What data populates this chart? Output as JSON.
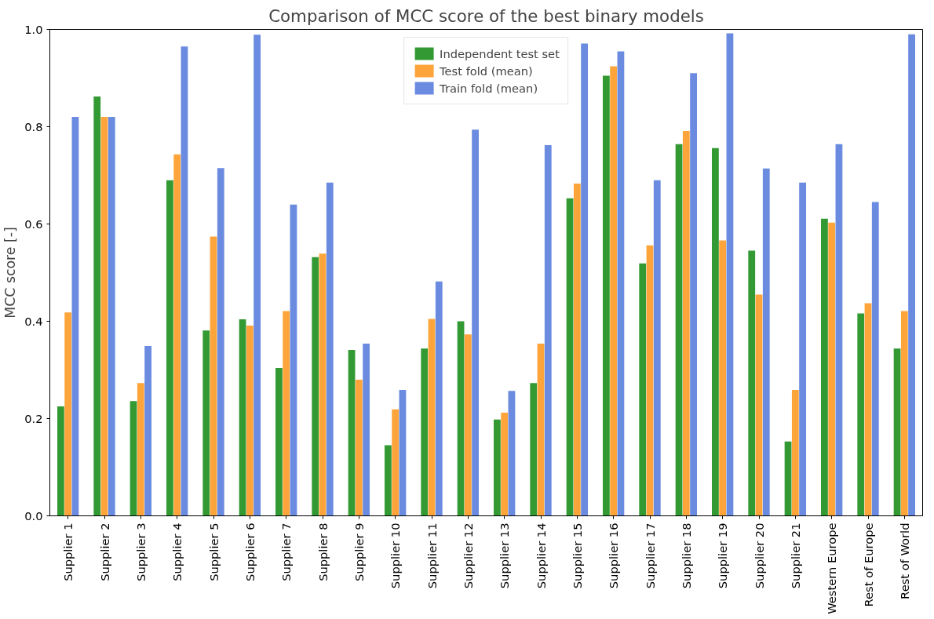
{
  "chart_data": {
    "type": "bar",
    "title": "Comparison of MCC score of the best binary models",
    "ylabel": "MCC score [-]",
    "categories": [
      "Supplier 1",
      "Supplier 2",
      "Supplier 3",
      "Supplier 4",
      "Supplier 5",
      "Supplier 6",
      "Supplier 7",
      "Supplier 8",
      "Supplier 9",
      "Supplier 10",
      "Supplier 11",
      "Supplier 12",
      "Supplier 13",
      "Supplier 14",
      "Supplier 15",
      "Supplier 16",
      "Supplier 17",
      "Supplier 18",
      "Supplier 19",
      "Supplier 20",
      "Supplier 21",
      "Western Europe",
      "Rest of Europe",
      "Rest of World"
    ],
    "series": [
      {
        "name": "Independent test set",
        "color": "#339a33",
        "values": [
          0.225,
          0.862,
          0.236,
          0.69,
          0.381,
          0.404,
          0.304,
          0.532,
          0.341,
          0.145,
          0.344,
          0.4,
          0.198,
          0.273,
          0.653,
          0.905,
          0.519,
          0.764,
          0.756,
          0.545,
          0.153,
          0.611,
          0.416,
          0.344
        ]
      },
      {
        "name": "Test fold (mean)",
        "color": "#fda53b",
        "values": [
          0.418,
          0.82,
          0.273,
          0.743,
          0.574,
          0.391,
          0.421,
          0.539,
          0.28,
          0.219,
          0.405,
          0.373,
          0.212,
          0.354,
          0.683,
          0.924,
          0.556,
          0.791,
          0.566,
          0.455,
          0.259,
          0.603,
          0.437,
          0.421
        ]
      },
      {
        "name": "Train fold (mean)",
        "color": "#6a8be0",
        "values": [
          0.82,
          0.82,
          0.349,
          0.965,
          0.715,
          0.989,
          0.64,
          0.685,
          0.354,
          0.259,
          0.482,
          0.794,
          0.257,
          0.762,
          0.971,
          0.955,
          0.69,
          0.91,
          0.992,
          0.714,
          0.685,
          0.764,
          0.645,
          0.99
        ]
      }
    ],
    "ylim": [
      0,
      1
    ],
    "yticks": [
      {
        "value": 0,
        "label": "0.0"
      },
      {
        "value": 0.2,
        "label": "0.2"
      },
      {
        "value": 0.4,
        "label": "0.4"
      },
      {
        "value": 0.6,
        "label": "0.6"
      },
      {
        "value": 0.8,
        "label": "0.8"
      },
      {
        "value": 1,
        "label": "1.0"
      }
    ],
    "grid": false,
    "legend": "top"
  }
}
